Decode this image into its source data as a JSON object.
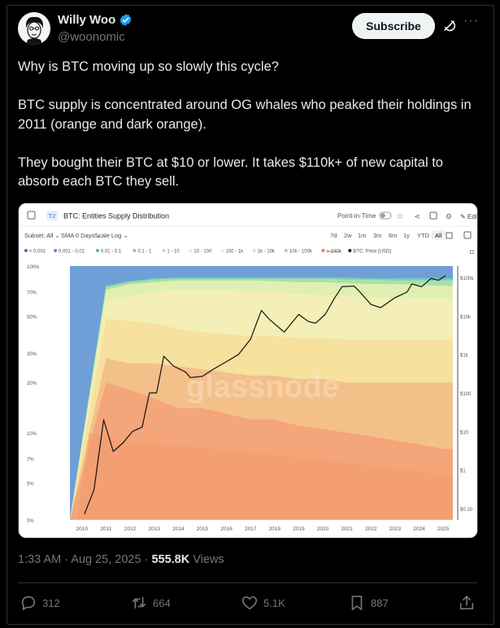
{
  "author": {
    "name": "Willy Woo",
    "handle": "@woonomic"
  },
  "header": {
    "subscribe_label": "Subscribe",
    "more_label": "···"
  },
  "tweet": {
    "paragraphs": [
      "Why is BTC moving up so slowly this cycle?",
      "BTC supply is concentrated around OG whales who peaked their holdings in 2011 (orange and dark orange).",
      "They bought their BTC at $10 or lower. It takes $110k+ of new capital to absorb each BTC they sell."
    ]
  },
  "chart_ui": {
    "badge": "T2",
    "title": "BTC: Entities Supply Distribution",
    "point_in_time": "Point-in-Time",
    "edit": "Edit",
    "subset": "Subset: All",
    "sma": "SMA 0 Days",
    "scale": "Scale Log",
    "ranges": [
      "7d",
      "2w",
      "1m",
      "3m",
      "6m",
      "1y",
      "YTD",
      "All"
    ],
    "active_range": "All",
    "watermark": "glassnode"
  },
  "chart_data": {
    "type": "area",
    "title": "BTC: Entities Supply Distribution",
    "legend": [
      {
        "name": "< 0.001",
        "color": "#4d6fbf"
      },
      {
        "name": "0.001 - 0.01",
        "color": "#4f8fd0"
      },
      {
        "name": "0.01 - 0.1",
        "color": "#55b6b0"
      },
      {
        "name": "0.1 - 1",
        "color": "#7fcf9a"
      },
      {
        "name": "1 - 10",
        "color": "#bfe3a0"
      },
      {
        "name": "10 - 100",
        "color": "#e4f0b0"
      },
      {
        "name": "100 - 1k",
        "color": "#f5eeb0"
      },
      {
        "name": "1k - 10k",
        "color": "#f6dc9a"
      },
      {
        "name": "10k - 100k",
        "color": "#f4b783"
      },
      {
        "name": "> 100k",
        "color": "#f07e4a",
        "struck": true
      },
      {
        "name": "BTC: Price [USD]",
        "color": "#111111"
      }
    ],
    "x": [
      "2010",
      "2011",
      "2012",
      "2013",
      "2014",
      "2015",
      "2016",
      "2017",
      "2018",
      "2019",
      "2020",
      "2021",
      "2022",
      "2023",
      "2024",
      "2025"
    ],
    "left_axis_ticks": [
      "100%",
      "70%",
      "50%",
      "30%",
      "20%",
      "10%",
      "7%",
      "5%",
      "3%"
    ],
    "right_axis_ticks": [
      "$100k",
      "$10k",
      "$1k",
      "$100",
      "$10",
      "$1",
      "$0.10"
    ],
    "left_scale": "log",
    "right_scale": "log",
    "series_boundaries_pct": [
      {
        "name": "10k - 100k",
        "values": [
          3,
          20,
          18,
          16,
          14,
          14,
          13,
          12,
          12,
          11,
          10.5,
          10,
          9.5,
          9,
          8.5,
          8
        ]
      },
      {
        "name": "1k - 10k",
        "values": [
          3,
          28,
          26,
          26,
          25,
          24,
          23,
          22,
          22,
          21,
          21,
          20,
          20,
          20,
          20,
          20
        ]
      },
      {
        "name": "100 - 1k",
        "values": [
          3,
          48,
          47,
          45,
          42,
          40,
          39,
          38,
          38,
          37,
          37,
          36,
          36,
          36,
          36,
          36
        ]
      },
      {
        "name": "10 - 100",
        "values": [
          3,
          62,
          66,
          70,
          72,
          72,
          72,
          70,
          70,
          68,
          67,
          66,
          65,
          64,
          64,
          64
        ]
      },
      {
        "name": "1 - 10",
        "values": [
          3,
          72,
          78,
          80,
          82,
          82,
          82,
          82,
          81,
          80,
          80,
          79,
          78,
          78,
          77,
          76
        ]
      },
      {
        "name": "0.1 - 1",
        "values": [
          3,
          75,
          80,
          83,
          84,
          84,
          84,
          84,
          84,
          84,
          84,
          83,
          83,
          82,
          82,
          82
        ]
      },
      {
        "name": "0.01 - 0.1",
        "values": [
          3,
          76,
          81,
          84,
          85,
          85,
          85,
          85,
          85,
          85,
          85,
          85,
          84,
          84,
          84,
          84
        ]
      },
      {
        "name": "0.001 - 0.01",
        "values": [
          3,
          77,
          82,
          85,
          86,
          86,
          86,
          86,
          86,
          86,
          86,
          86,
          85,
          85,
          85,
          85
        ]
      }
    ],
    "price_usd": {
      "x": [
        2010.6,
        2011.0,
        2011.4,
        2011.8,
        2012.2,
        2012.6,
        2013.0,
        2013.3,
        2013.6,
        2013.9,
        2014.3,
        2014.8,
        2015.0,
        2015.5,
        2016.0,
        2016.5,
        2017.0,
        2017.5,
        2017.95,
        2018.3,
        2018.9,
        2019.5,
        2019.9,
        2020.2,
        2020.6,
        2021.0,
        2021.3,
        2021.8,
        2022.0,
        2022.5,
        2022.9,
        2023.5,
        2024.0,
        2024.2,
        2024.6,
        2025.0,
        2025.3,
        2025.6
      ],
      "y": [
        0.07,
        0.3,
        20,
        3,
        5,
        10,
        13,
        100,
        100,
        900,
        500,
        350,
        250,
        270,
        430,
        650,
        1000,
        2500,
        14000,
        8000,
        3800,
        11000,
        7200,
        6500,
        11000,
        30000,
        58000,
        60000,
        45000,
        20000,
        16500,
        30000,
        42000,
        68000,
        58000,
        95000,
        85000,
        112000
      ]
    }
  },
  "meta": {
    "time": "1:33 AM · Aug 25, 2025 · ",
    "views_count": "555.8K",
    "views_label": " Views"
  },
  "actions": {
    "replies": "312",
    "reposts": "664",
    "likes": "5.1K",
    "bookmarks": "887"
  }
}
